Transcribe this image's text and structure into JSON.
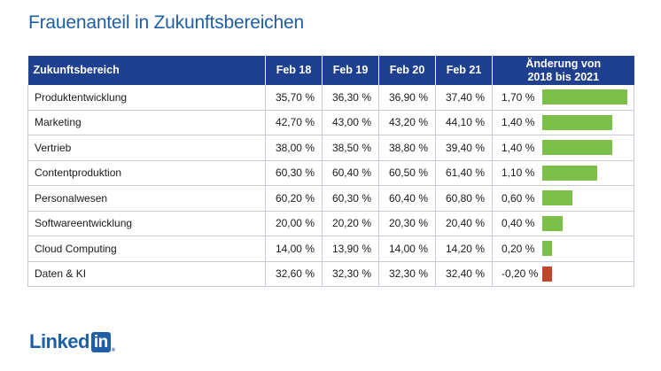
{
  "title": "Frauenanteil in Zukunftsbereichen",
  "chart_data": {
    "type": "table",
    "headers": {
      "category": "Zukunftsbereich",
      "periods": [
        "Feb 18",
        "Feb 19",
        "Feb 20",
        "Feb 21"
      ],
      "change_line1": "Änderung von",
      "change_line2": "2018 bis 2021"
    },
    "rows": [
      {
        "category": "Produktentwicklung",
        "values": [
          "35,70 %",
          "36,30 %",
          "36,90 %",
          "37,40 %"
        ],
        "change": "1,70 %",
        "change_value": 1.7
      },
      {
        "category": "Marketing",
        "values": [
          "42,70 %",
          "43,00 %",
          "43,20 %",
          "44,10 %"
        ],
        "change": "1,40 %",
        "change_value": 1.4
      },
      {
        "category": "Vertrieb",
        "values": [
          "38,00 %",
          "38,50 %",
          "38,80 %",
          "39,40 %"
        ],
        "change": "1,40 %",
        "change_value": 1.4
      },
      {
        "category": "Contentproduktion",
        "values": [
          "60,30 %",
          "60,40 %",
          "60,50 %",
          "61,40 %"
        ],
        "change": "1,10 %",
        "change_value": 1.1
      },
      {
        "category": "Personalwesen",
        "values": [
          "60,20 %",
          "60,30 %",
          "60,40 %",
          "60,80 %"
        ],
        "change": "0,60 %",
        "change_value": 0.6
      },
      {
        "category": "Softwareentwicklung",
        "values": [
          "20,00 %",
          "20,20 %",
          "20,30 %",
          "20,40 %"
        ],
        "change": "0,40 %",
        "change_value": 0.4
      },
      {
        "category": "Cloud Computing",
        "values": [
          "14,00 %",
          "13,90 %",
          "14,00 %",
          "14,20 %"
        ],
        "change": "0,20 %",
        "change_value": 0.2
      },
      {
        "category": "Daten & KI",
        "values": [
          "32,60 %",
          "32,30 %",
          "32,30 %",
          "32,40 %"
        ],
        "change": "-0,20 %",
        "change_value": -0.2
      }
    ],
    "bar_max": 1.7,
    "colors": {
      "positive": "#7cc04b",
      "negative": "#c0472a",
      "header": "#1f3f8f",
      "title": "#1e5fa8"
    }
  },
  "logo": {
    "text": "Linked",
    "badge": "in",
    "mark": "®"
  }
}
